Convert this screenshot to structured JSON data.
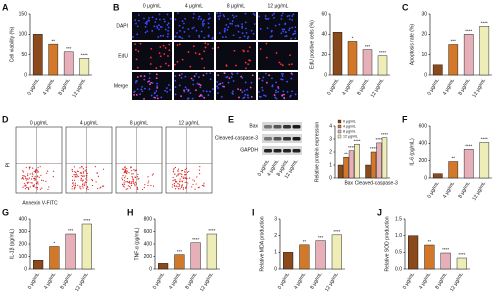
{
  "chart_data": [
    {
      "type": "bar",
      "panel": "A",
      "y_label": "Cell viability (%)",
      "categories": [
        "0 μg/mL",
        "4 μg/mL",
        "8 μg/mL",
        "12 μg/mL"
      ],
      "values": [
        100,
        76,
        57,
        41
      ],
      "colors": [
        "#8b4a1c",
        "#d2782a",
        "#e7b0b8",
        "#eeedb8"
      ],
      "sig": [
        null,
        "**",
        "***",
        "****"
      ],
      "ylim": [
        0,
        150
      ],
      "yticks": [
        0,
        50,
        100,
        150
      ]
    },
    {
      "type": "bar",
      "panel": "B",
      "y_label": "EdU positive cells (%)",
      "categories": [
        "0 μg/mL",
        "4 μg/mL",
        "8 μg/mL",
        "12 μg/mL"
      ],
      "values": [
        42,
        33,
        25,
        19
      ],
      "colors": [
        "#8b4a1c",
        "#d2782a",
        "#e7b0b8",
        "#eeedb8"
      ],
      "sig": [
        null,
        "*",
        "***",
        "****"
      ],
      "ylim": [
        0,
        60
      ],
      "yticks": [
        0,
        20,
        40,
        60
      ]
    },
    {
      "type": "bar",
      "panel": "C",
      "y_label": "Apoptosis rate (%)",
      "categories": [
        "0 μg/mL",
        "4 μg/mL",
        "8 μg/mL",
        "12 μg/mL"
      ],
      "values": [
        5,
        15,
        20,
        24
      ],
      "colors": [
        "#8b4a1c",
        "#d2782a",
        "#e7b0b8",
        "#eeedb8"
      ],
      "sig": [
        null,
        "***",
        "****",
        "****"
      ],
      "ylim": [
        0,
        30
      ],
      "yticks": [
        0,
        10,
        20,
        30
      ]
    },
    {
      "type": "grouped_bar",
      "panel": "E",
      "y_label": "Relative protein expression",
      "categories": [
        "Bax",
        "Cleaved-caspase-3"
      ],
      "series": [
        {
          "name": "0 μg/mL",
          "color": "#8b4a1c",
          "values": [
            1,
            1
          ],
          "sig": [
            null,
            null
          ]
        },
        {
          "name": "4 μg/mL",
          "color": "#d2782a",
          "values": [
            1.6,
            2.0
          ],
          "sig": [
            "**",
            "****"
          ]
        },
        {
          "name": "8 μg/mL",
          "color": "#e7b0b8",
          "values": [
            2.1,
            2.7
          ],
          "sig": [
            "****",
            "****"
          ]
        },
        {
          "name": "12 μg/mL",
          "color": "#eeedb8",
          "values": [
            2.6,
            3.1
          ],
          "sig": [
            "****",
            "****"
          ]
        }
      ],
      "ylim": [
        0,
        4
      ],
      "yticks": [
        0,
        1,
        2,
        3,
        4
      ]
    },
    {
      "type": "bar",
      "panel": "F",
      "y_label": "IL-6 (pg/mL)",
      "categories": [
        "0 μg/mL",
        "4 μg/mL",
        "8 μg/mL",
        "12 μg/mL"
      ],
      "values": [
        50,
        190,
        330,
        410
      ],
      "colors": [
        "#8b4a1c",
        "#d2782a",
        "#e7b0b8",
        "#eeedb8"
      ],
      "sig": [
        null,
        "**",
        "****",
        "****"
      ],
      "ylim": [
        0,
        600
      ],
      "yticks": [
        0,
        200,
        400,
        600
      ]
    },
    {
      "type": "bar",
      "panel": "G",
      "y_label": "IL-1β (pg/mL)",
      "categories": [
        "0 μg/mL",
        "4 μg/mL",
        "8 μg/mL",
        "12 μg/mL"
      ],
      "values": [
        70,
        180,
        280,
        360
      ],
      "colors": [
        "#8b4a1c",
        "#d2782a",
        "#e7b0b8",
        "#eeedb8"
      ],
      "sig": [
        null,
        "*",
        "***",
        "****"
      ],
      "ylim": [
        0,
        400
      ],
      "yticks": [
        0,
        100,
        200,
        300,
        400
      ]
    },
    {
      "type": "bar",
      "panel": "H",
      "y_label": "TNF-α (pg/mL)",
      "categories": [
        "0 μg/mL",
        "4 μg/mL",
        "8 μg/mL",
        "12 μg/mL"
      ],
      "values": [
        90,
        230,
        420,
        560
      ],
      "colors": [
        "#8b4a1c",
        "#d2782a",
        "#e7b0b8",
        "#eeedb8"
      ],
      "sig": [
        null,
        "***",
        "****",
        "****"
      ],
      "ylim": [
        0,
        800
      ],
      "yticks": [
        0,
        200,
        400,
        600,
        800
      ]
    },
    {
      "type": "bar",
      "panel": "I",
      "y_label": "Relative MDA production",
      "categories": [
        "0 μg/mL",
        "4 μg/mL",
        "8 μg/mL",
        "12 μg/mL"
      ],
      "values": [
        1.0,
        1.45,
        1.7,
        2.05
      ],
      "colors": [
        "#8b4a1c",
        "#d2782a",
        "#e7b0b8",
        "#eeedb8"
      ],
      "sig": [
        null,
        "**",
        "***",
        "****"
      ],
      "ylim": [
        0,
        3
      ],
      "yticks": [
        0,
        1,
        2,
        3
      ]
    },
    {
      "type": "bar",
      "panel": "J",
      "y_label": "Relative SOD production",
      "categories": [
        "0 μg/mL",
        "4 μg/mL",
        "8 μg/mL",
        "12 μg/mL"
      ],
      "values": [
        1.0,
        0.72,
        0.48,
        0.33
      ],
      "colors": [
        "#8b4a1c",
        "#d2782a",
        "#e7b0b8",
        "#eeedb8"
      ],
      "sig": [
        null,
        "**",
        "****",
        "****"
      ],
      "ylim": [
        0,
        1.5
      ],
      "yticks": [
        {
          "value": 0,
          "label": "0.0"
        },
        {
          "value": 0.5,
          "label": "0.5"
        },
        {
          "value": 1,
          "label": "1.0"
        },
        {
          "value": 1.5,
          "label": "1.5"
        }
      ]
    }
  ],
  "microscopy": {
    "columns": [
      "0 μg/mL",
      "4 μg/mL",
      "8 μg/mL",
      "12 μg/mL"
    ],
    "rows": [
      "DAPI",
      "EdU",
      "Merge"
    ]
  },
  "flow": {
    "panel": "D",
    "columns": [
      "0 μg/mL",
      "4 μg/mL",
      "8 μg/mL",
      "12 μg/mL"
    ],
    "x_label": "Annexin V-FITC",
    "y_label": "PI"
  },
  "blot": {
    "rows": [
      "Bax",
      "Cleaved-caspase-3",
      "GAPDH"
    ],
    "columns": [
      "0 μg/mL",
      "4 μg/mL",
      "8 μg/mL",
      "12 μg/mL"
    ]
  }
}
